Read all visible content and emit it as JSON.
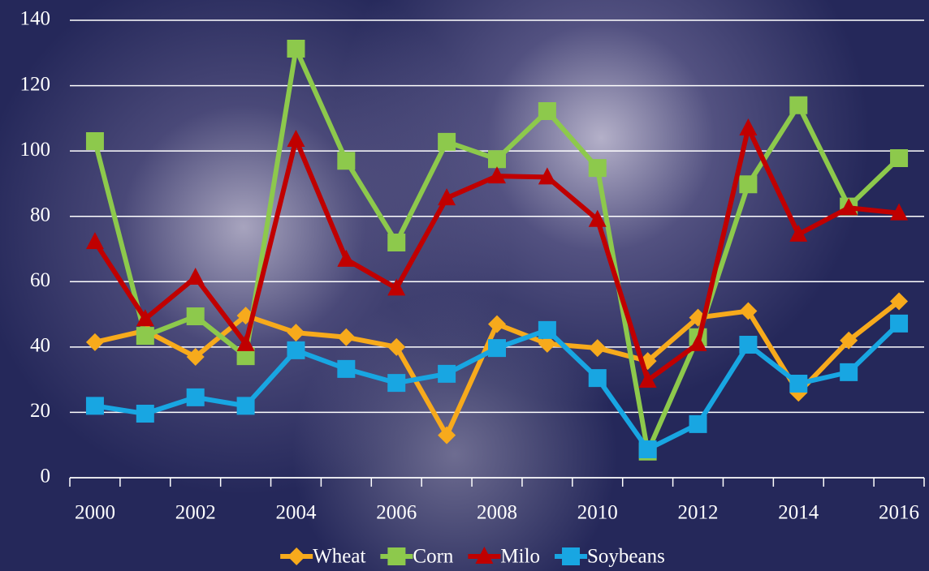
{
  "chart_data": {
    "type": "line",
    "categories": [
      "2000",
      null,
      "2002",
      null,
      "2004",
      null,
      "2006",
      null,
      "2008",
      null,
      "2010",
      null,
      "2012",
      null,
      "2014",
      null,
      "2016"
    ],
    "series": [
      {
        "name": "Wheat",
        "color": "#f7aa1c",
        "marker": "diamond",
        "values": [
          41.5,
          45,
          37,
          49.6,
          44.4,
          43,
          40,
          13,
          47,
          41,
          39.7,
          35.7,
          49,
          51,
          26,
          42,
          54
        ]
      },
      {
        "name": "Corn",
        "color": "#8dc94c",
        "marker": "square",
        "values": [
          103,
          43.4,
          49.4,
          37.2,
          131.3,
          97,
          72,
          102.8,
          97.5,
          112.2,
          94.8,
          8,
          43,
          89.8,
          114,
          83,
          97.8
        ]
      },
      {
        "name": "Milo",
        "color": "#c00000",
        "marker": "triangle",
        "values": [
          72.2,
          48.6,
          61.3,
          41,
          103.5,
          66.8,
          58,
          85.6,
          92.3,
          92,
          79,
          29.8,
          41,
          107,
          74.5,
          82.6,
          81
        ]
      },
      {
        "name": "Soybeans",
        "color": "#18a6e2",
        "marker": "square",
        "values": [
          22,
          19.6,
          24.6,
          22,
          39,
          33.3,
          29,
          31.8,
          39.7,
          45.2,
          30.5,
          8.7,
          16.4,
          40.7,
          28.8,
          32.3,
          47.2
        ]
      }
    ],
    "ylim": [
      0,
      140
    ],
    "yticks": [
      0,
      20,
      40,
      60,
      80,
      100,
      120,
      140
    ],
    "grid": true,
    "legend": "bottom"
  }
}
